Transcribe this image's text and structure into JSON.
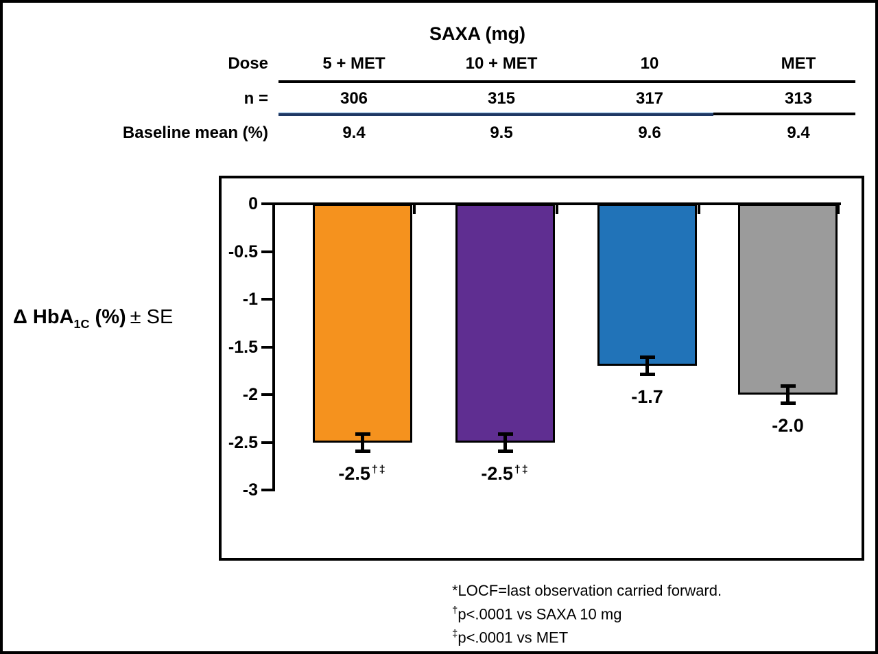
{
  "header_table": {
    "group_title": "SAXA (mg)",
    "row_labels": {
      "dose": "Dose",
      "n": "n =",
      "baseline": "Baseline mean (%)"
    },
    "columns": [
      "5 + MET",
      "10 + MET",
      "10",
      "MET"
    ],
    "n_values": [
      "306",
      "315",
      "317",
      "313"
    ],
    "baseline_values": [
      "9.4",
      "9.5",
      "9.6",
      "9.4"
    ]
  },
  "y_axis": {
    "label_bold": "Δ HbA",
    "label_subscript": "1C",
    "label_bold_2": " (%)",
    "label_regular": "± SE",
    "ticks": [
      "0",
      "-0.5",
      "-1",
      "-1.5",
      "-2",
      "-2.5",
      "-3"
    ]
  },
  "chart_data": {
    "type": "bar",
    "orientation": "vertical",
    "title": "",
    "group_label": "SAXA (mg)",
    "categories": [
      "SAXA 5 + MET",
      "SAXA 10 + MET",
      "SAXA 10",
      "MET"
    ],
    "values": [
      -2.5,
      -2.5,
      -1.7,
      -2.0
    ],
    "errors_se_visual": [
      0.1,
      0.1,
      0.1,
      0.1
    ],
    "bar_labels": [
      {
        "text": "-2.5",
        "superscript": "†‡"
      },
      {
        "text": "-2.5",
        "superscript": "†‡"
      },
      {
        "text": "-1.7",
        "superscript": ""
      },
      {
        "text": "-2.0",
        "superscript": ""
      }
    ],
    "bar_colors": [
      "#F5921E",
      "#5F2E91",
      "#2173B8",
      "#9B9B9B"
    ],
    "n": [
      306,
      315,
      317,
      313
    ],
    "baseline_mean_pct": [
      9.4,
      9.5,
      9.6,
      9.4
    ],
    "ylabel": "Δ HbA1C (%) ± SE",
    "ylim": [
      -3,
      0
    ],
    "grid": false,
    "legend": "none"
  },
  "footnotes": [
    {
      "sup": "",
      "text": "*LOCF=last observation carried forward."
    },
    {
      "sup": "†",
      "text": "p<.0001 vs SAXA 10 mg"
    },
    {
      "sup": "‡",
      "text": "p<.0001 vs MET"
    }
  ],
  "colors": {
    "axis": "#000000",
    "table_rule_black": "#000000",
    "table_rule_blue_light": "#BDD7EE",
    "table_rule_blue_dark": "#1F3864"
  }
}
